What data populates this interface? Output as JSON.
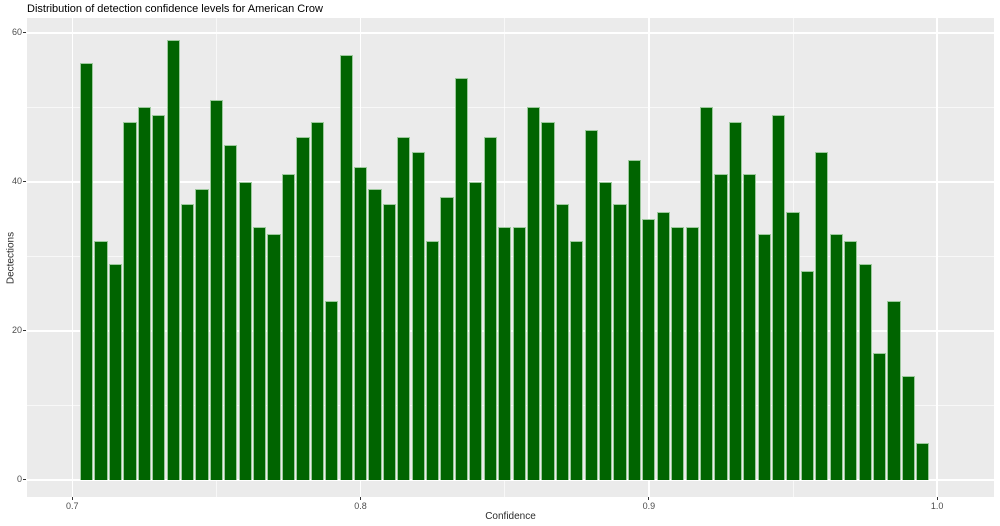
{
  "chart_data": {
    "type": "bar",
    "subtype": "histogram",
    "title": "Distribution of detection confidence levels for American Crow",
    "xlabel": "Confidence",
    "ylabel": "Dectections",
    "bin_width": 0.005,
    "first_bin_center": 0.705,
    "values": [
      56,
      32,
      29,
      48,
      50,
      49,
      59,
      37,
      39,
      51,
      45,
      40,
      34,
      33,
      41,
      46,
      48,
      24,
      57,
      42,
      39,
      37,
      46,
      44,
      32,
      38,
      54,
      40,
      46,
      34,
      34,
      50,
      48,
      37,
      32,
      47,
      40,
      37,
      43,
      35,
      36,
      34,
      34,
      50,
      41,
      48,
      41,
      33,
      49,
      36,
      28,
      44,
      33,
      32,
      29,
      17,
      24,
      14,
      5
    ],
    "x_ticks": [
      {
        "value": 0.7,
        "label": "0.7"
      },
      {
        "value": 0.8,
        "label": "0.8"
      },
      {
        "value": 0.9,
        "label": "0.9"
      },
      {
        "value": 1.0,
        "label": "1.0"
      }
    ],
    "y_ticks": [
      {
        "value": 0,
        "label": "0"
      },
      {
        "value": 20,
        "label": "20"
      },
      {
        "value": 40,
        "label": "40"
      },
      {
        "value": 60,
        "label": "60"
      }
    ],
    "x_minor": [
      0.75,
      0.85,
      0.95
    ],
    "y_minor": [
      10,
      30,
      50
    ],
    "xlim": [
      0.6843,
      1.0197
    ],
    "ylim": [
      -2.3,
      62.0
    ],
    "grid": "on",
    "legend_position": "none",
    "colors": {
      "bar_fill": "#006400",
      "bar_border": "#9cc99c",
      "panel_background": "#EBEBEB",
      "grid_major": "#FFFFFF",
      "tick_label": "#4D4D4D",
      "title": "#000000",
      "page_background": "#FFFFFF"
    }
  }
}
